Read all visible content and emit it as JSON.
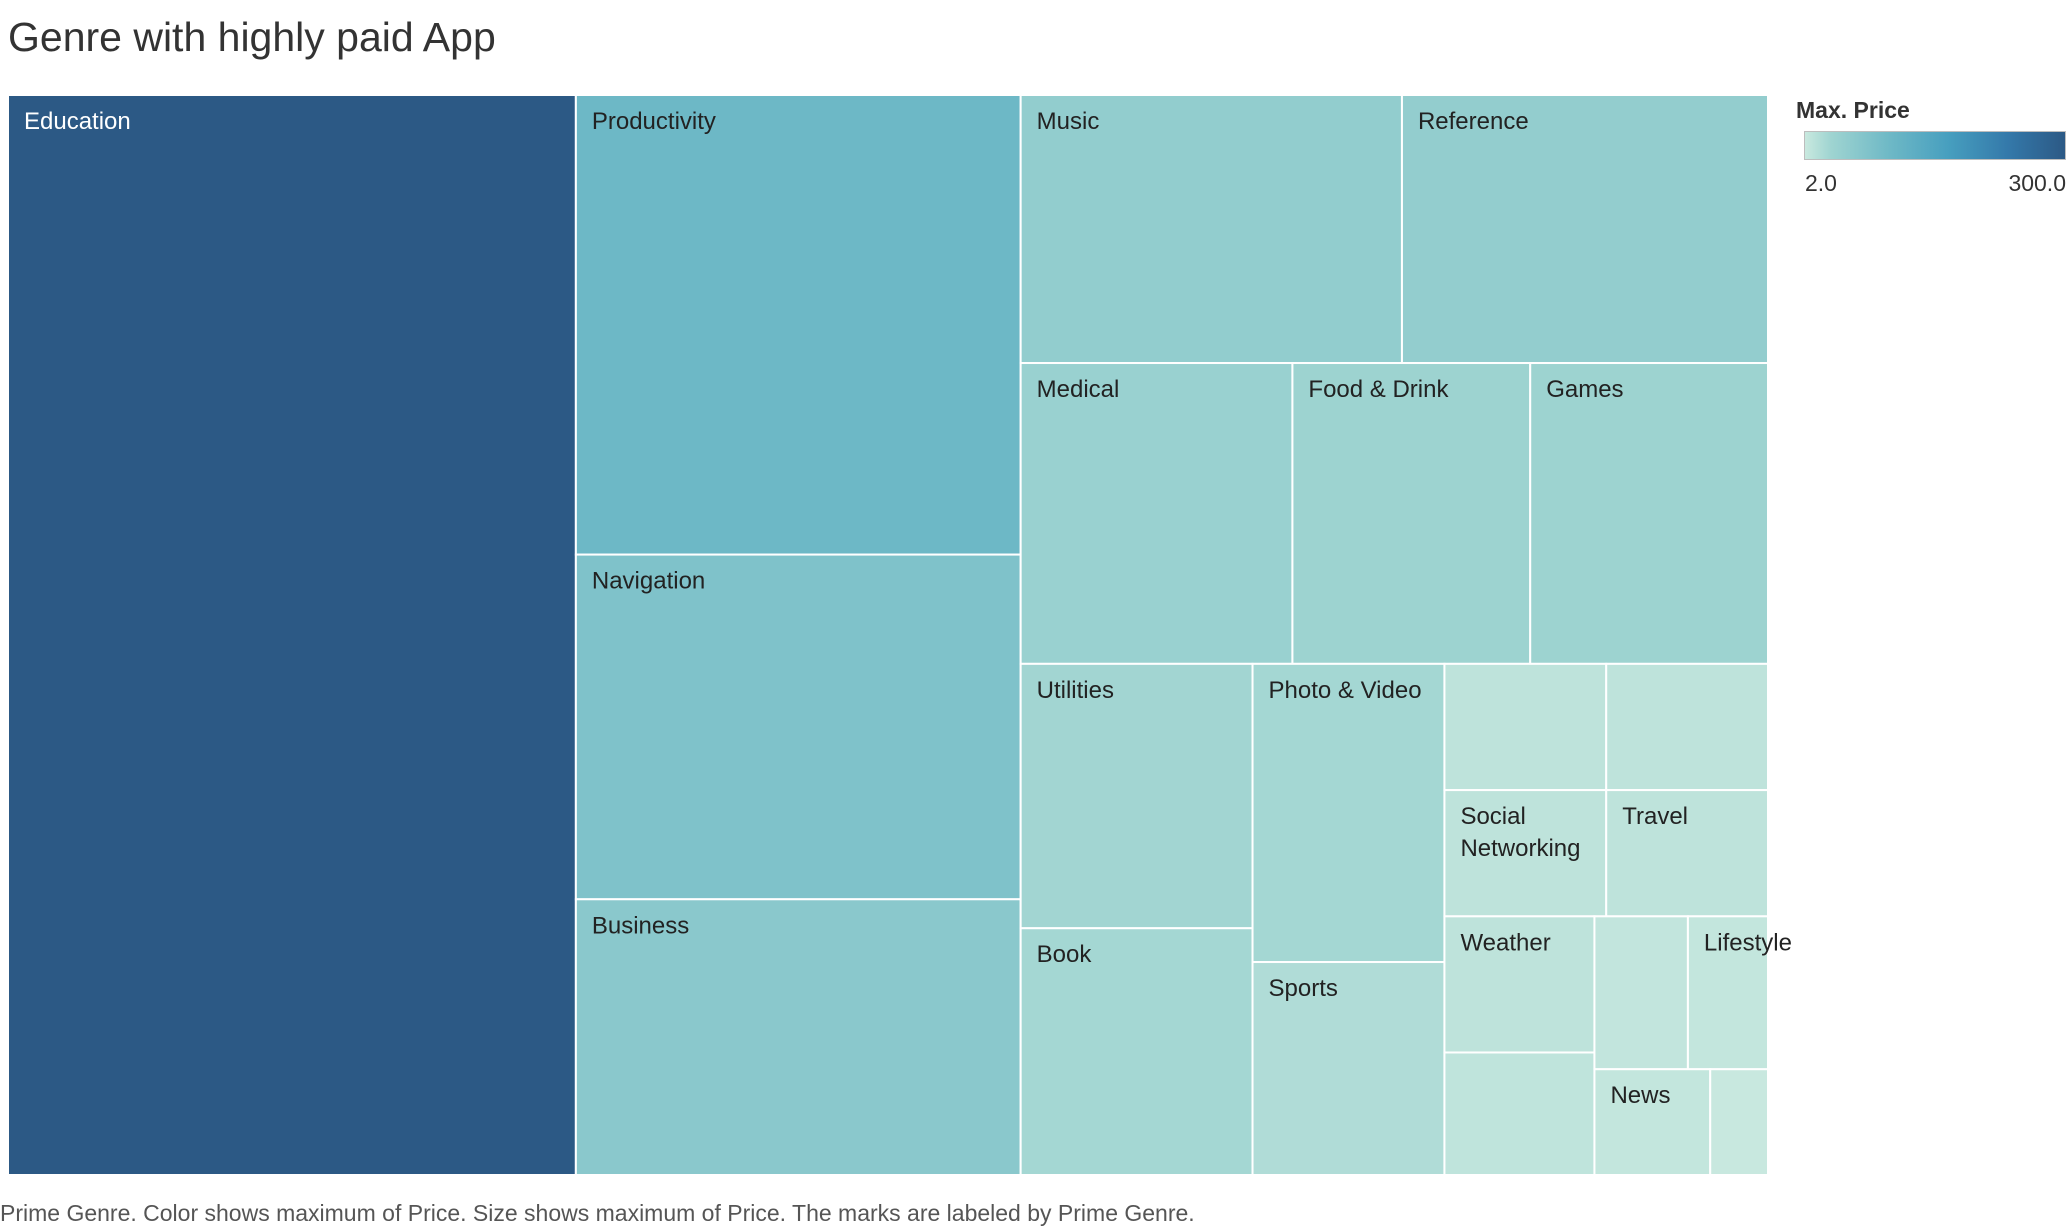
{
  "chart_data": {
    "type": "treemap",
    "title": "Genre with highly paid App",
    "caption": "Prime Genre.  Color shows maximum of Price.  Size shows maximum of Price.  The marks are labeled by Prime Genre.",
    "legend": {
      "title": "Max. Price",
      "min_label": "2.0",
      "max_label": "300.0",
      "min": 2.0,
      "max": 300.0,
      "color_low": "#c9e9df",
      "color_high": "#2c5985"
    },
    "data": [
      {
        "genre": "Education",
        "label": "Education",
        "max_price": 299.99
      },
      {
        "genre": "Productivity",
        "label": "Productivity",
        "max_price": 99.99
      },
      {
        "genre": "Navigation",
        "label": "Navigation",
        "max_price": 74.99
      },
      {
        "genre": "Business",
        "label": "Business",
        "max_price": 59.99
      },
      {
        "genre": "Music",
        "label": "Music",
        "max_price": 49.99
      },
      {
        "genre": "Reference",
        "label": "Reference",
        "max_price": 47.99
      },
      {
        "genre": "Medical",
        "label": "Medical",
        "max_price": 39.99
      },
      {
        "genre": "Food & Drink",
        "label": "Food & Drink",
        "max_price": 34.99
      },
      {
        "genre": "Games",
        "label": "Games",
        "max_price": 34.99
      },
      {
        "genre": "Utilities",
        "label": "Utilities",
        "max_price": 29.99
      },
      {
        "genre": "Book",
        "label": "Book",
        "max_price": 27.99
      },
      {
        "genre": "Photo & Video",
        "label": "Photo & Video",
        "max_price": 27.99
      },
      {
        "genre": "Sports",
        "label": "Sports",
        "max_price": 19.99
      },
      {
        "genre": "Unlabeled A",
        "label": "",
        "max_price": 9.99
      },
      {
        "genre": "Unlabeled B",
        "label": "",
        "max_price": 9.99
      },
      {
        "genre": "Social Networking",
        "label": "Social Networking",
        "max_price": 9.99
      },
      {
        "genre": "Travel",
        "label": "Travel",
        "max_price": 9.99
      },
      {
        "genre": "Weather",
        "label": "Weather",
        "max_price": 9.99
      },
      {
        "genre": "Unlabeled C",
        "label": "",
        "max_price": 8.99
      },
      {
        "genre": "Unlabeled D",
        "label": "",
        "max_price": 6.99
      },
      {
        "genre": "Lifestyle",
        "label": "Lifestyle",
        "max_price": 5.99
      },
      {
        "genre": "News",
        "label": "News",
        "max_price": 5.99
      },
      {
        "genre": "Unlabeled E",
        "label": "",
        "max_price": 2.99
      }
    ]
  }
}
